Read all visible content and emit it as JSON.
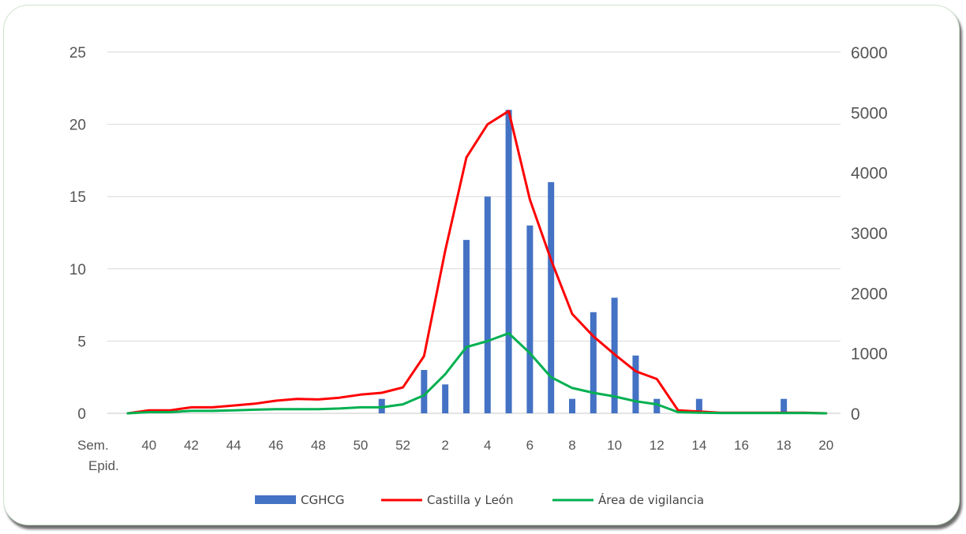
{
  "chart_data": {
    "type": "bar",
    "x_ticks": [
      "40",
      "42",
      "44",
      "46",
      "48",
      "50",
      "52",
      "2",
      "4",
      "6",
      "8",
      "10",
      "12",
      "14",
      "16",
      "18",
      "20"
    ],
    "x_axis_label_line1": "Sem.",
    "x_axis_label_line2": "Epid.",
    "weeks": [
      "39",
      "40",
      "41",
      "42",
      "43",
      "44",
      "45",
      "46",
      "47",
      "48",
      "49",
      "50",
      "51",
      "52",
      "1",
      "2",
      "3",
      "4",
      "5",
      "6",
      "7",
      "8",
      "9",
      "10",
      "11",
      "12",
      "13",
      "14",
      "15",
      "16",
      "17",
      "18",
      "19",
      "20"
    ],
    "ylim_left": [
      0,
      25
    ],
    "yticks_left": [
      0,
      5,
      10,
      15,
      20,
      25
    ],
    "ylim_right": [
      0,
      6000
    ],
    "yticks_right": [
      0,
      1000,
      2000,
      3000,
      4000,
      5000,
      6000
    ],
    "grid": true,
    "legend_position": "bottom",
    "series": [
      {
        "name": "CGHCG",
        "type": "bar",
        "axis": "left",
        "color": "#4472C4",
        "values": [
          0,
          0,
          0,
          0,
          0,
          0,
          0,
          0,
          0,
          0,
          0,
          0,
          1,
          0,
          3,
          2,
          12,
          15,
          21,
          13,
          16,
          1,
          7,
          8,
          4,
          1,
          0,
          1,
          0,
          0,
          0,
          1,
          0,
          0
        ]
      },
      {
        "name": "Castilla y León",
        "type": "line",
        "axis": "right",
        "color": "#FF0000",
        "values": [
          0,
          50,
          50,
          100,
          100,
          130,
          160,
          210,
          240,
          230,
          260,
          310,
          340,
          430,
          950,
          2700,
          4250,
          4800,
          5020,
          3550,
          2550,
          1650,
          1280,
          980,
          700,
          570,
          50,
          30,
          10,
          10,
          10,
          10,
          10,
          0
        ]
      },
      {
        "name": "Área de vigilancia",
        "type": "line",
        "axis": "right",
        "color": "#00B050",
        "values": [
          0,
          20,
          20,
          40,
          40,
          50,
          60,
          70,
          70,
          70,
          80,
          100,
          100,
          150,
          300,
          650,
          1100,
          1200,
          1330,
          1000,
          600,
          420,
          340,
          280,
          200,
          150,
          20,
          10,
          5,
          5,
          5,
          5,
          5,
          0
        ]
      }
    ]
  }
}
